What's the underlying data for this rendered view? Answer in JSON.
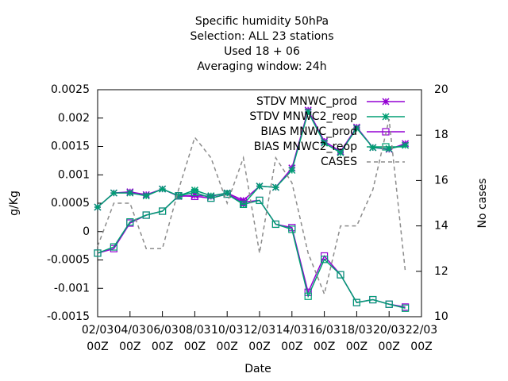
{
  "chart_data": {
    "type": "line",
    "title": [
      "Specific humidity 50hPa",
      "Selection: ALL      23 stations",
      "Used  18 + 06",
      "Averaging window: 24h"
    ],
    "xlabel": "Date",
    "ylabel": "g/Kg",
    "y2label": "No cases",
    "x": [
      0,
      1,
      2,
      3,
      4,
      5,
      6,
      7,
      8,
      9,
      10,
      11,
      12,
      13,
      14,
      15,
      16,
      17,
      18,
      19
    ],
    "xlim": [
      0,
      20
    ],
    "xticks": [
      {
        "value": 0,
        "label": [
          "02/03",
          "00Z"
        ]
      },
      {
        "value": 2,
        "label": [
          "04/03",
          "00Z"
        ]
      },
      {
        "value": 4,
        "label": [
          "06/03",
          "00Z"
        ]
      },
      {
        "value": 6,
        "label": [
          "08/03",
          "00Z"
        ]
      },
      {
        "value": 8,
        "label": [
          "10/03",
          "00Z"
        ]
      },
      {
        "value": 10,
        "label": [
          "12/03",
          "00Z"
        ]
      },
      {
        "value": 12,
        "label": [
          "14/03",
          "00Z"
        ]
      },
      {
        "value": 14,
        "label": [
          "16/03",
          "00Z"
        ]
      },
      {
        "value": 16,
        "label": [
          "18/03",
          "00Z"
        ]
      },
      {
        "value": 18,
        "label": [
          "20/03",
          "00Z"
        ]
      },
      {
        "value": 20,
        "label": [
          "22/03",
          "00Z"
        ]
      }
    ],
    "ylim": [
      -0.0015,
      0.0025
    ],
    "yticks": [
      -0.0015,
      -0.001,
      -0.0005,
      0,
      0.0005,
      0.001,
      0.0015,
      0.002,
      0.0025
    ],
    "y2lim": [
      10,
      20
    ],
    "y2ticks": [
      10,
      12,
      14,
      16,
      18,
      20
    ],
    "legend": "top-right",
    "series": [
      {
        "name": "STDV MNWC_prod",
        "color": "#9400d3",
        "marker": "star",
        "values": [
          0.00043,
          0.00068,
          0.0007,
          0.00065,
          0.00075,
          0.00062,
          0.00064,
          0.00062,
          0.00068,
          0.00055,
          0.0008,
          0.00078,
          0.00112,
          0.00214,
          0.00159,
          0.00141,
          0.00184,
          0.00148,
          0.00145,
          0.00155
        ]
      },
      {
        "name": "STDV MNWC2_reop",
        "color": "#009e73",
        "marker": "star",
        "values": [
          0.00043,
          0.00068,
          0.00068,
          0.00063,
          0.00075,
          0.00063,
          0.00073,
          0.00063,
          0.00068,
          0.00048,
          0.0008,
          0.00078,
          0.00108,
          0.00211,
          0.00156,
          0.00139,
          0.00182,
          0.00148,
          0.00146,
          0.00152
        ]
      },
      {
        "name": "BIAS MNWC_prod",
        "color": "#9400d3",
        "marker": "square",
        "values": [
          -0.00038,
          -0.0003,
          0.00015,
          0.00029,
          0.00036,
          0.00063,
          0.00062,
          0.00059,
          0.00066,
          0.00052,
          0.00055,
          0.00013,
          7e-05,
          -0.00107,
          -0.00043,
          -0.00076,
          -0.00125,
          -0.0012,
          -0.00128,
          -0.00133
        ]
      },
      {
        "name": "BIAS MNWC2_reop",
        "color": "#009e73",
        "marker": "square",
        "values": [
          -0.00038,
          -0.00027,
          0.00017,
          0.00029,
          0.00036,
          0.00063,
          0.00069,
          0.00059,
          0.00066,
          0.00048,
          0.00055,
          0.00013,
          4e-05,
          -0.00114,
          -0.00049,
          -0.00076,
          -0.00125,
          -0.0012,
          -0.00128,
          -0.00135
        ]
      },
      {
        "name": "CASES",
        "color": "#8c8c8c",
        "axis": "y2",
        "dashed": true,
        "values": [
          13.1,
          15,
          15,
          13,
          13,
          15.6,
          17.9,
          17,
          15,
          17,
          12.8,
          17,
          15.9,
          12.8,
          11,
          14,
          14,
          15.6,
          18.7,
          12
        ]
      }
    ]
  }
}
